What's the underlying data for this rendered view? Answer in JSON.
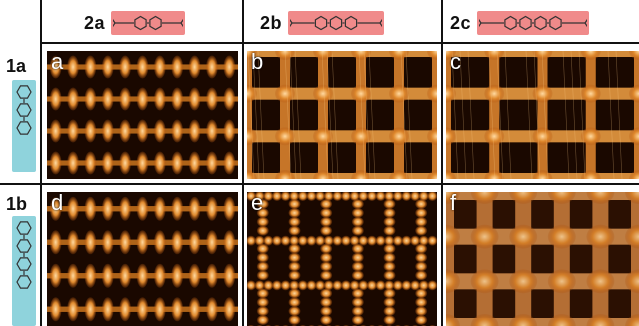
{
  "columns": [
    {
      "label": "2a",
      "rings": 2,
      "molecule_name": "biphenyl-linker-icon"
    },
    {
      "label": "2b",
      "rings": 3,
      "molecule_name": "terphenyl-linker-icon"
    },
    {
      "label": "2c",
      "rings": 4,
      "molecule_name": "quaterphenyl-linker-icon"
    }
  ],
  "rows": [
    {
      "label": "1a",
      "rings": 3,
      "molecule_name": "terpyridine-linker-icon"
    },
    {
      "label": "1b",
      "rings": 4,
      "molecule_name": "quaterpyridine-linker-icon"
    }
  ],
  "panels": [
    {
      "letter": "a",
      "style": "dense"
    },
    {
      "letter": "b",
      "style": "grid"
    },
    {
      "letter": "c",
      "style": "wide"
    },
    {
      "letter": "d",
      "style": "dense"
    },
    {
      "letter": "e",
      "style": "beads"
    },
    {
      "letter": "f",
      "style": "soft"
    }
  ],
  "colors": {
    "header_molecule_bg": "#f08a8a",
    "row_molecule_bg": "#8fd3dc",
    "stm_dark": "#1a0800",
    "stm_mid": "#b5560f",
    "stm_light": "#ffd9a0"
  }
}
